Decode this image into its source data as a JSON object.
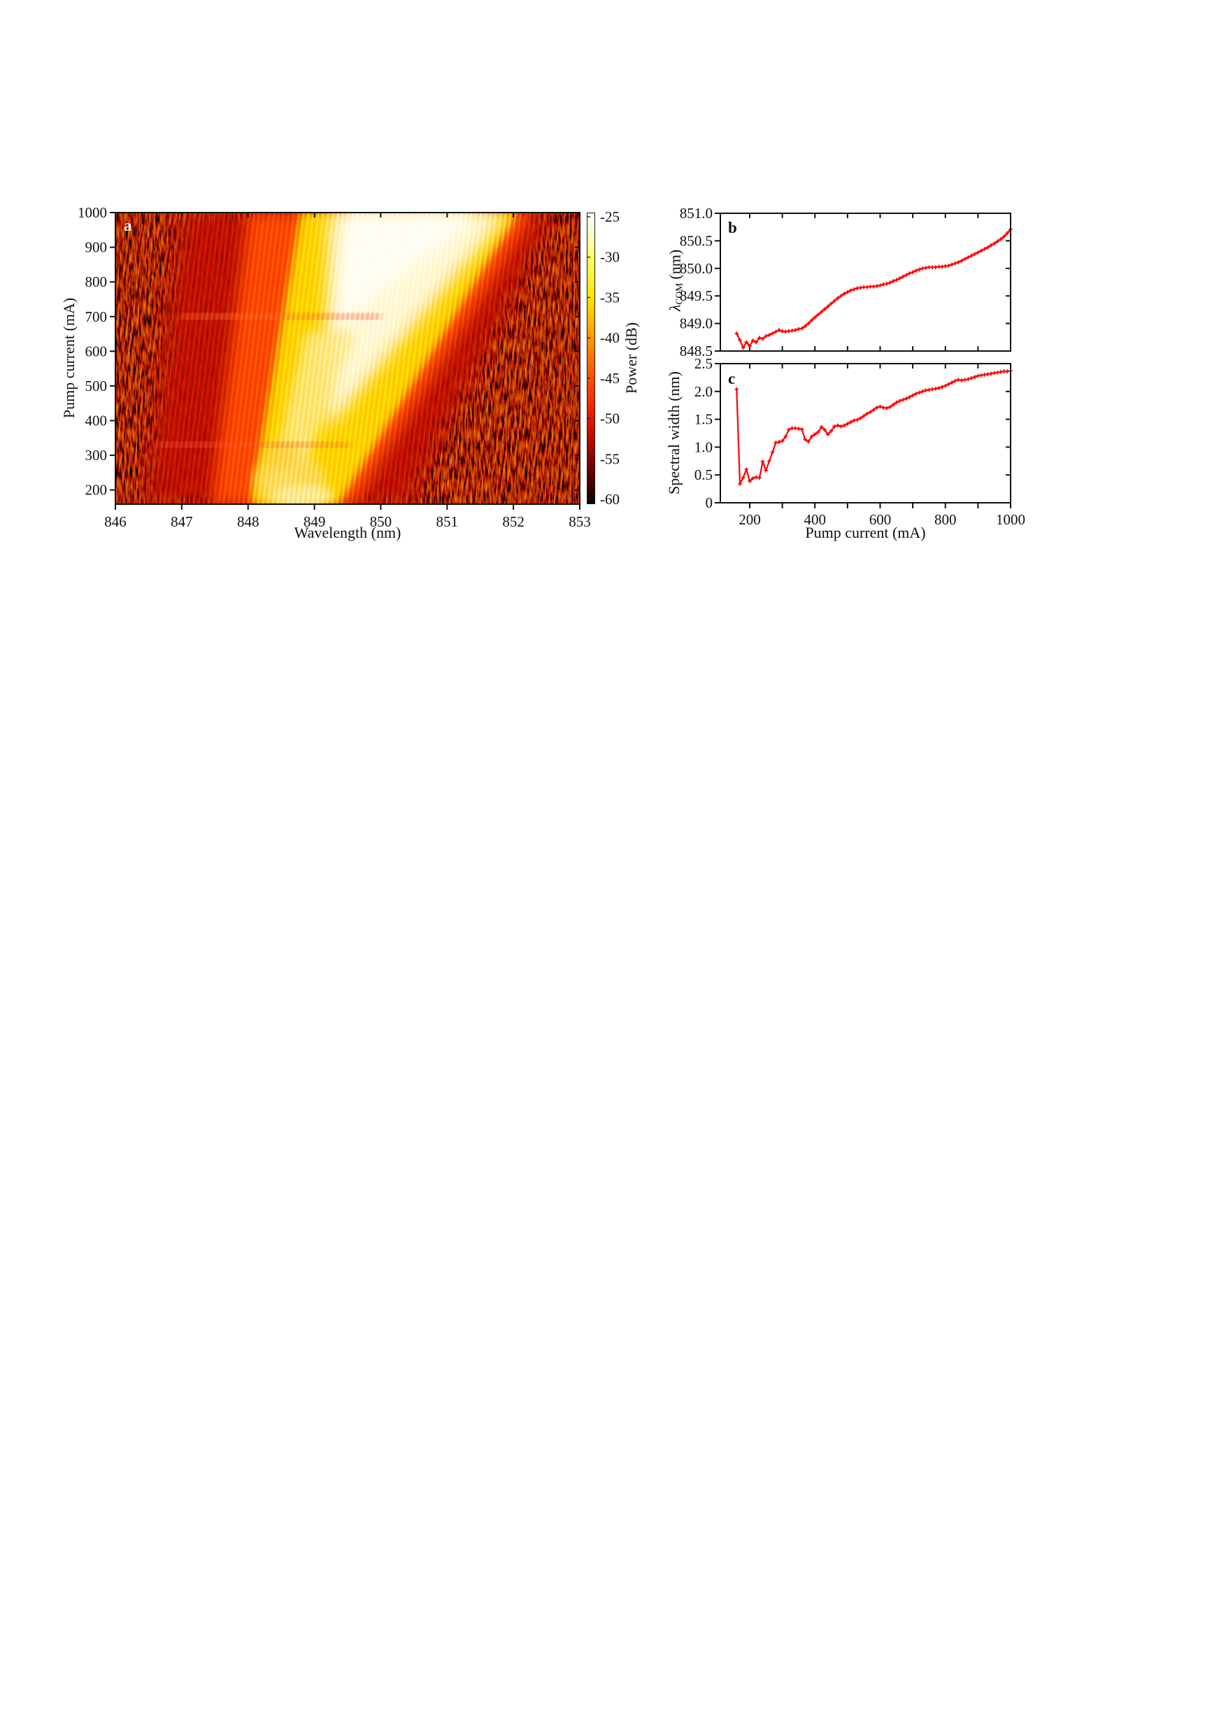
{
  "panels": {
    "a": {
      "label": "a",
      "xlabel": "Wavelength (nm)",
      "ylabel": "Pump current (mA)",
      "x_tick_labels": [
        "846",
        "847",
        "848",
        "849",
        "850",
        "851",
        "852",
        "853"
      ],
      "y_tick_labels": [
        "1000",
        "900",
        "800",
        "700",
        "600",
        "500",
        "400",
        "300",
        "200"
      ],
      "colorbar_label": "Power (dB)",
      "colorbar_tick_labels": [
        "-25",
        "-30",
        "-35",
        "-40",
        "-45",
        "-50",
        "-55",
        "-60"
      ]
    },
    "b": {
      "label": "b",
      "ylabel_symbol": "λ",
      "ylabel_subscript": "COM",
      "ylabel_unit": "(nm)",
      "y_tick_labels": [
        "851.0",
        "850.5",
        "850.0",
        "849.5",
        "849.0",
        "848.5"
      ]
    },
    "c": {
      "label": "c",
      "xlabel": "Pump current (mA)",
      "ylabel": "Spectral width (nm)",
      "x_tick_labels": [
        "200",
        "400",
        "600",
        "800",
        "1000"
      ],
      "y_tick_labels": [
        "2.5",
        "2.0",
        "1.5",
        "1.0",
        "0.5",
        "0"
      ]
    }
  },
  "style": {
    "line_color": "#ff0000",
    "axis_color": "#111111",
    "background": "#ffffff"
  },
  "chart_data": [
    {
      "type": "heatmap",
      "panel": "a",
      "xlabel": "Wavelength (nm)",
      "ylabel": "Pump current (mA)",
      "xlim": [
        846,
        853
      ],
      "ylim": [
        159,
        1000
      ],
      "x_ticks": [
        846,
        847,
        848,
        849,
        850,
        851,
        852,
        853
      ],
      "y_ticks": [
        1000,
        900,
        800,
        700,
        600,
        500,
        400,
        300,
        200
      ],
      "colorbar": {
        "label": "Power (dB)",
        "range_db": [
          -60,
          -25
        ],
        "ticks": [
          -25,
          -30,
          -35,
          -40,
          -45,
          -50,
          -55,
          -60
        ],
        "colormap": "hot"
      },
      "features": {
        "bright_band_long_wavelength_edge_nm": {
          "at_160mA": 849.4,
          "at_1000mA": 852.2
        },
        "bright_band_short_wavelength_edge_nm": {
          "at_160mA": 848.2,
          "at_1000mA": 849.0
        },
        "fringe_spacing_nm": 0.07,
        "horizontal_bright_features_mA": [
          330,
          700
        ],
        "description": "Optical spectrum vs pump current: bright lasing band broadens and shifts to longer wavelength with current; sharp diagonal long-wavelength edge; vertical Fabry-Perot fringes; dark red speckle background; bright speckled blob near 848.2-849.2 nm below 350 mA."
      }
    },
    {
      "type": "line",
      "panel": "b",
      "ylabel": "λCOM (nm)",
      "xlim": [
        110,
        1000
      ],
      "ylim": [
        848.5,
        851.0
      ],
      "x_ticks": [
        200,
        300,
        400,
        500,
        600,
        700,
        800,
        900,
        1000
      ],
      "x_label_ticks": [],
      "y_ticks": [
        851.0,
        850.5,
        850.0,
        849.5,
        849.0,
        848.5
      ],
      "series": [
        {
          "name": "center-of-mass wavelength",
          "color": "#ff0000",
          "x": [
            160,
            170,
            180,
            190,
            200,
            210,
            220,
            230,
            240,
            250,
            260,
            270,
            280,
            290,
            300,
            310,
            320,
            330,
            340,
            350,
            360,
            370,
            380,
            390,
            400,
            410,
            420,
            430,
            440,
            450,
            460,
            470,
            480,
            490,
            500,
            510,
            520,
            530,
            540,
            550,
            560,
            570,
            580,
            590,
            600,
            610,
            620,
            630,
            640,
            650,
            660,
            670,
            680,
            690,
            700,
            710,
            720,
            730,
            740,
            750,
            760,
            770,
            780,
            790,
            800,
            810,
            820,
            830,
            840,
            850,
            860,
            870,
            880,
            890,
            900,
            910,
            920,
            930,
            940,
            950,
            960,
            970,
            980,
            990,
            1000
          ],
          "y": [
            848.82,
            848.7,
            848.56,
            848.66,
            848.59,
            848.69,
            848.66,
            848.74,
            848.72,
            848.77,
            848.79,
            848.82,
            848.85,
            848.88,
            848.86,
            848.85,
            848.86,
            848.87,
            848.88,
            848.9,
            848.91,
            848.95,
            849.0,
            849.06,
            849.11,
            849.16,
            849.21,
            849.26,
            849.31,
            849.36,
            849.41,
            849.46,
            849.5,
            849.54,
            849.57,
            849.6,
            849.62,
            849.64,
            849.65,
            849.66,
            849.66,
            849.67,
            849.67,
            849.68,
            849.69,
            849.71,
            849.72,
            849.74,
            849.77,
            849.79,
            849.82,
            849.85,
            849.88,
            849.91,
            849.93,
            849.96,
            849.98,
            850.0,
            850.01,
            850.02,
            850.02,
            850.02,
            850.03,
            850.03,
            850.04,
            850.05,
            850.07,
            850.09,
            850.11,
            850.14,
            850.17,
            850.2,
            850.23,
            850.26,
            850.29,
            850.32,
            850.35,
            850.38,
            850.42,
            850.45,
            850.49,
            850.53,
            850.58,
            850.64,
            850.71
          ]
        }
      ]
    },
    {
      "type": "line",
      "panel": "c",
      "xlabel": "Pump current (mA)",
      "ylabel": "Spectral width (nm)",
      "xlim": [
        110,
        1000
      ],
      "ylim": [
        0,
        2.5
      ],
      "x_ticks": [
        200,
        300,
        400,
        500,
        600,
        700,
        800,
        900,
        1000
      ],
      "x_label_ticks": [
        200,
        400,
        600,
        800,
        1000
      ],
      "y_ticks": [
        2.5,
        2.0,
        1.5,
        1.0,
        0.5,
        0
      ],
      "series": [
        {
          "name": "spectral width",
          "color": "#ff0000",
          "x": [
            160,
            170,
            180,
            190,
            200,
            210,
            220,
            230,
            240,
            250,
            260,
            270,
            280,
            290,
            300,
            310,
            320,
            330,
            340,
            350,
            360,
            370,
            380,
            390,
            400,
            410,
            420,
            430,
            440,
            450,
            460,
            470,
            480,
            490,
            500,
            510,
            520,
            530,
            540,
            550,
            560,
            570,
            580,
            590,
            600,
            610,
            620,
            630,
            640,
            650,
            660,
            670,
            680,
            690,
            700,
            710,
            720,
            730,
            740,
            750,
            760,
            770,
            780,
            790,
            800,
            810,
            820,
            830,
            840,
            850,
            860,
            870,
            880,
            890,
            900,
            910,
            920,
            930,
            940,
            950,
            960,
            970,
            980,
            990,
            1000
          ],
          "y": [
            2.04,
            0.34,
            0.45,
            0.6,
            0.39,
            0.44,
            0.46,
            0.45,
            0.74,
            0.58,
            0.75,
            0.91,
            1.08,
            1.09,
            1.11,
            1.19,
            1.31,
            1.34,
            1.34,
            1.33,
            1.32,
            1.14,
            1.1,
            1.19,
            1.23,
            1.27,
            1.36,
            1.31,
            1.23,
            1.29,
            1.37,
            1.39,
            1.37,
            1.39,
            1.42,
            1.45,
            1.48,
            1.49,
            1.52,
            1.56,
            1.6,
            1.63,
            1.67,
            1.71,
            1.73,
            1.71,
            1.7,
            1.72,
            1.76,
            1.8,
            1.83,
            1.85,
            1.87,
            1.9,
            1.93,
            1.96,
            1.98,
            2.0,
            2.02,
            2.03,
            2.04,
            2.05,
            2.06,
            2.08,
            2.1,
            2.13,
            2.16,
            2.19,
            2.21,
            2.2,
            2.21,
            2.22,
            2.24,
            2.26,
            2.28,
            2.29,
            2.3,
            2.31,
            2.32,
            2.33,
            2.34,
            2.35,
            2.36,
            2.36,
            2.37
          ]
        }
      ]
    }
  ]
}
